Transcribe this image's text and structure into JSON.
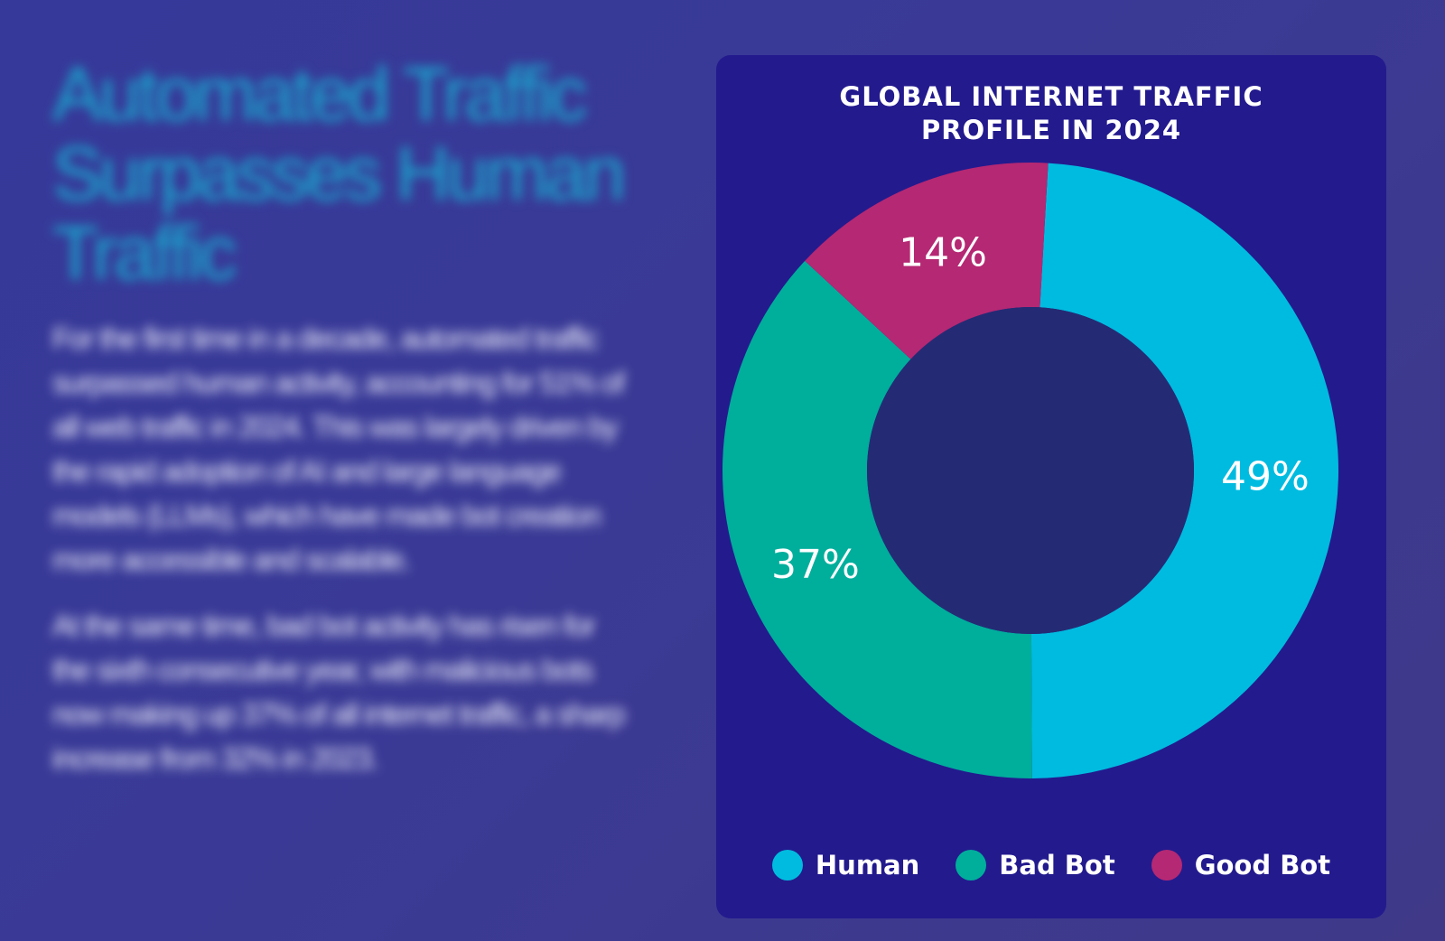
{
  "article": {
    "headline": "Automated Traffic Surpasses Human Traffic",
    "paragraphs": [
      "For the first time in a decade, automated traffic surpassed human activity, accounting for 51% of all web traffic in 2024. This was largely driven by the rapid adoption of AI and large language models (LLMs), which have made bot creation more accessible and scalable.",
      "At the same time, bad bot activity has risen for the sixth consecutive year, with malicious bots now making up 37% of all internet traffic, a sharp increase from 32% in 2023."
    ]
  },
  "chart_data": {
    "type": "pie",
    "title_lines": [
      "GLOBAL INTERNET TRAFFIC",
      "PROFILE IN 2024"
    ],
    "categories": [
      "Human",
      "Bad Bot",
      "Good Bot"
    ],
    "values": [
      49,
      37,
      14
    ],
    "data_labels": [
      "49%",
      "37%",
      "14%"
    ],
    "colors": [
      "#00bbe0",
      "#00ae9c",
      "#b52873"
    ],
    "hole_color": "#242b74",
    "legend_position": "bottom"
  }
}
